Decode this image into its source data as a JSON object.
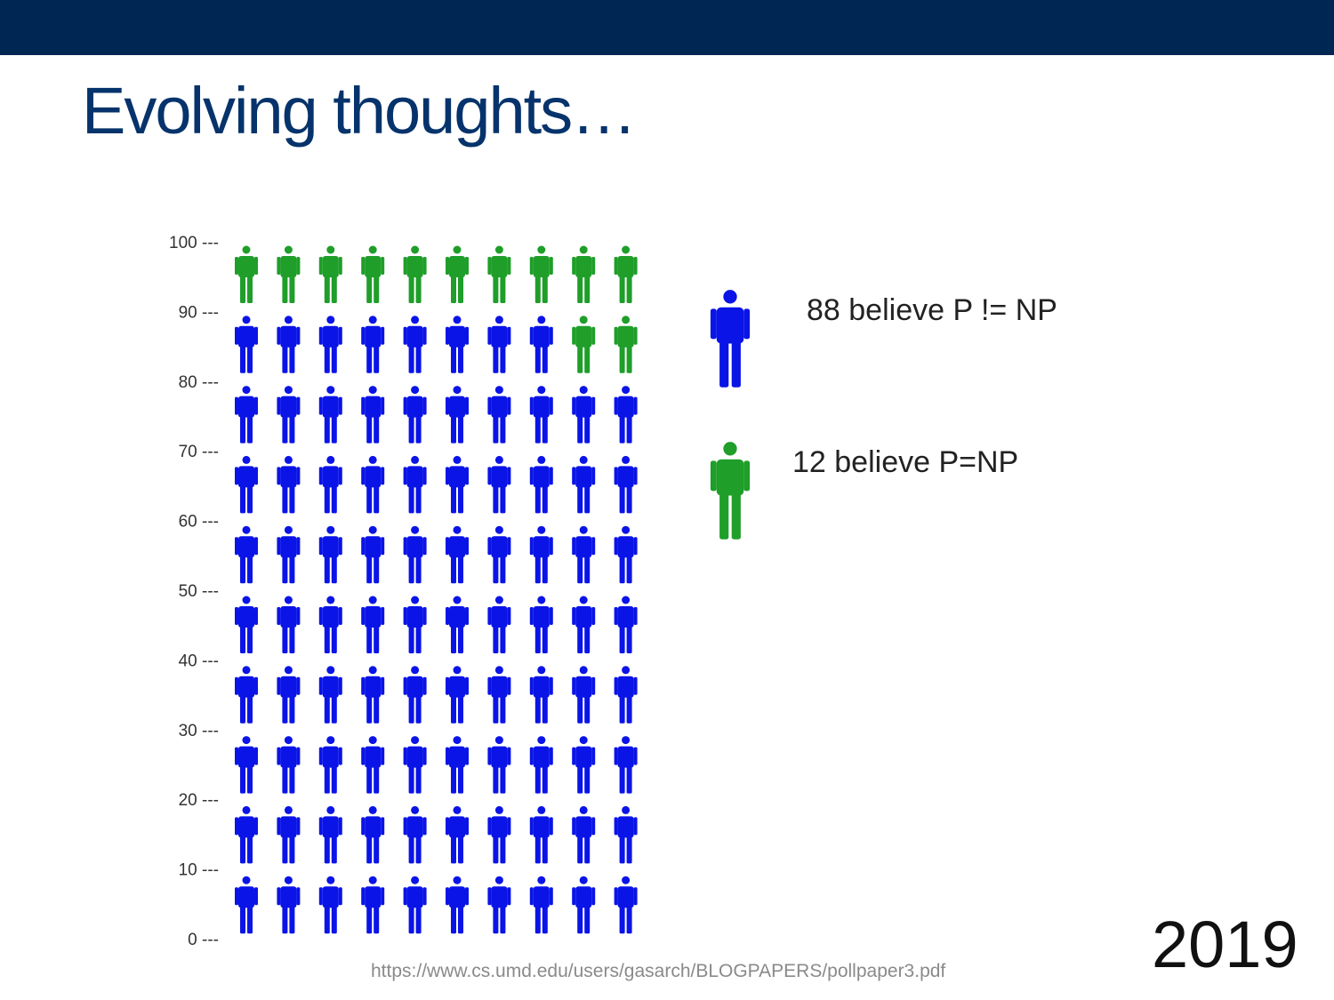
{
  "slide": {
    "title": "Evolving thoughts…",
    "year": "2019",
    "source_url": "https://www.cs.umd.edu/users/gasarch/BLOGPAPERS/pollpaper3.pdf",
    "header_color": "#002654"
  },
  "chart_data": {
    "type": "pictogram",
    "title": "",
    "total": 100,
    "columns": 10,
    "rows": 10,
    "y_tick_labels": [
      "0 ---",
      "10 ---",
      "20 ---",
      "30 ---",
      "40 ---",
      "50 ---",
      "60 ---",
      "70 ---",
      "80 ---",
      "90 ---",
      "100 ---"
    ],
    "ylim": [
      0,
      100
    ],
    "series": [
      {
        "name": "88 believe P != NP",
        "value": 88,
        "color": "#0a14e6"
      },
      {
        "name": "12 believe P=NP",
        "value": 12,
        "color": "#1f9e2a"
      }
    ],
    "legend_placement": "right"
  }
}
